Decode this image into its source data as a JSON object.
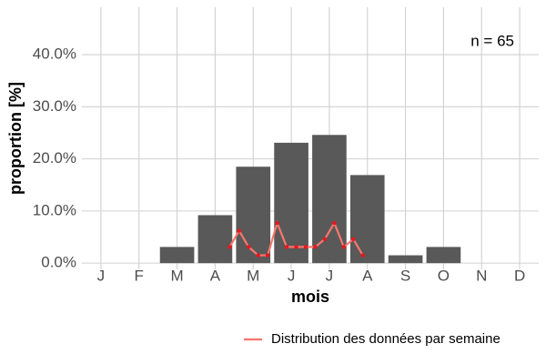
{
  "chart_data": {
    "type": "bar",
    "categories": [
      "J",
      "F",
      "M",
      "A",
      "M",
      "J",
      "J",
      "A",
      "S",
      "O",
      "N",
      "D"
    ],
    "values": [
      0,
      0,
      3.1,
      9.2,
      18.5,
      23.1,
      24.6,
      16.9,
      1.5,
      3.1,
      0,
      0
    ],
    "color": "#595959",
    "line": {
      "name": "Distribution des données par semaine",
      "color": "#f8766d",
      "point_color": "#e8171d",
      "x": [
        4.38,
        4.63,
        4.88,
        5.13,
        5.38,
        5.63,
        5.88,
        6.13,
        6.38,
        6.63,
        6.88,
        7.13,
        7.38,
        7.63,
        7.88
      ],
      "values": [
        3.1,
        6.2,
        3.1,
        1.5,
        1.5,
        7.7,
        3.1,
        3.1,
        3.1,
        3.1,
        4.6,
        7.7,
        3.1,
        4.6,
        1.5
      ]
    },
    "xlim": [
      0.5,
      12.5
    ],
    "ylim": [
      -1.2,
      49.1
    ],
    "yticks": [
      {
        "value": 0,
        "label": "0.0%"
      },
      {
        "value": 10,
        "label": "10.0%"
      },
      {
        "value": 20,
        "label": "20.0%"
      },
      {
        "value": 30,
        "label": "30.0%"
      },
      {
        "value": 40,
        "label": "40.0%"
      }
    ],
    "xlabel": "mois",
    "ylabel": "proportion [%]",
    "annotation": "n = 65",
    "grid": true,
    "legend": "bottom-right"
  }
}
